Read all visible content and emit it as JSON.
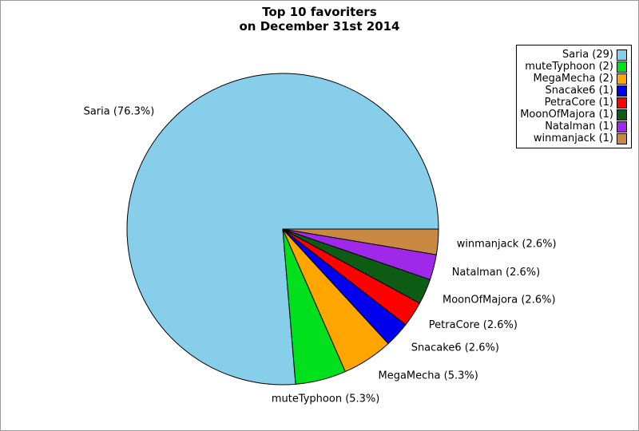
{
  "figure": {
    "background": "#ffffff",
    "border_color": "#9a9a9a"
  },
  "chart_data": {
    "type": "pie",
    "title_line1": "Top 10 favoriters",
    "title_line2": "on December 31st 2014",
    "total": 38,
    "start_angle_deg": 0,
    "direction": "counterclockwise",
    "legend_position": "upper right",
    "grid": false,
    "slices": [
      {
        "name": "Saria",
        "count": 29,
        "percent": 76.3,
        "color": "#87ceeb",
        "slice_label": "Saria (76.3%)",
        "legend_label": "Saria (29)"
      },
      {
        "name": "muteTyphoon",
        "count": 2,
        "percent": 5.3,
        "color": "#00e01c",
        "slice_label": "muteTyphoon (5.3%)",
        "legend_label": "muteTyphoon (2)"
      },
      {
        "name": "MegaMecha",
        "count": 2,
        "percent": 5.3,
        "color": "#ffa500",
        "slice_label": "MegaMecha (5.3%)",
        "legend_label": "MegaMecha (2)"
      },
      {
        "name": "Snacake6",
        "count": 1,
        "percent": 2.6,
        "color": "#0000ee",
        "slice_label": "Snacake6 (2.6%)",
        "legend_label": "Snacake6 (1)"
      },
      {
        "name": "PetraCore",
        "count": 1,
        "percent": 2.6,
        "color": "#ff0000",
        "slice_label": "PetraCore (2.6%)",
        "legend_label": "PetraCore (1)"
      },
      {
        "name": "MoonOfMajora",
        "count": 1,
        "percent": 2.6,
        "color": "#0e5c13",
        "slice_label": "MoonOfMajora (2.6%)",
        "legend_label": "MoonOfMajora (1)"
      },
      {
        "name": "Natalman",
        "count": 1,
        "percent": 2.6,
        "color": "#a028e8",
        "slice_label": "Natalman (2.6%)",
        "legend_label": "Natalman (1)"
      },
      {
        "name": "winmanjack",
        "count": 1,
        "percent": 2.6,
        "color": "#c98943",
        "slice_label": "winmanjack (2.6%)",
        "legend_label": "winmanjack (1)"
      }
    ]
  }
}
